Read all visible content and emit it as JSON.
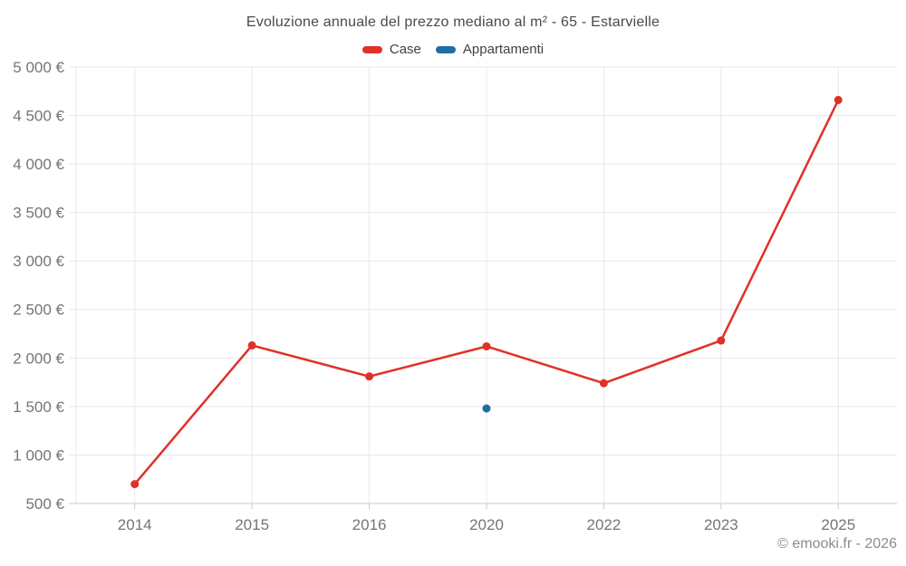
{
  "footer": {
    "credit": "© emooki.fr - 2026"
  },
  "chart_data": {
    "type": "line",
    "title": "Evoluzione annuale del prezzo mediano al m² - 65 - Estarvielle",
    "categories": [
      "2014",
      "2015",
      "2016",
      "2020",
      "2022",
      "2023",
      "2025"
    ],
    "series": [
      {
        "name": "Case",
        "color": "#e03128",
        "values": [
          700,
          2130,
          1810,
          2120,
          1740,
          2180,
          4660
        ]
      },
      {
        "name": "Appartamenti",
        "color": "#1d6fa3",
        "values": [
          null,
          null,
          null,
          1480,
          null,
          null,
          null
        ]
      }
    ],
    "ylim": [
      500,
      5000
    ],
    "ytick_step": 500,
    "ytick_labels": [
      "500 €",
      "1 000 €",
      "1 500 €",
      "2 000 €",
      "2 500 €",
      "3 000 €",
      "3 500 €",
      "4 000 €",
      "4 500 €",
      "5 000 €"
    ],
    "xlabel": "",
    "ylabel": "",
    "grid": true,
    "legend_position": "top",
    "colors": {
      "grid": "#e8e8e8",
      "axis": "#c9c9c9",
      "tick_label": "#757575"
    }
  }
}
